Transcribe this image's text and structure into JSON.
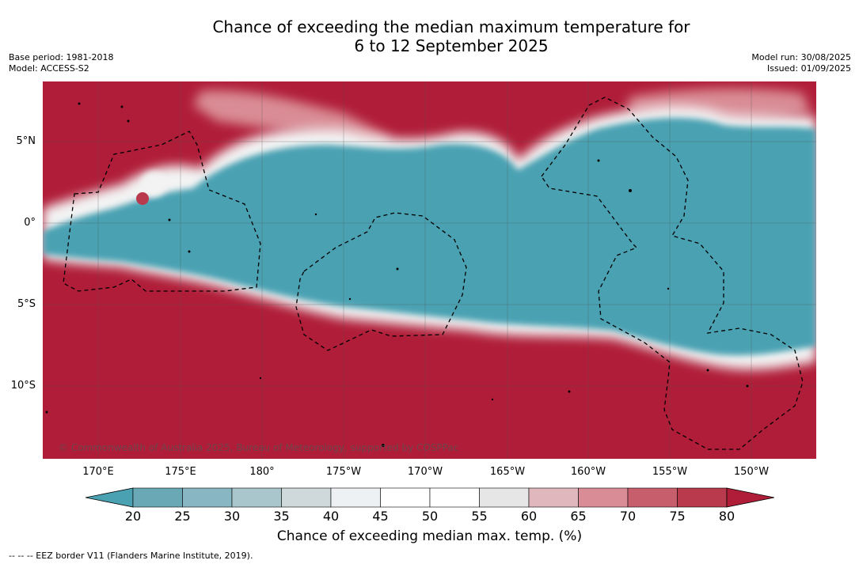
{
  "title_line1": "Chance of exceeding the median maximum temperature for",
  "title_line2": "6 to 12 September 2025",
  "base_period": "Base period: 1981-2018",
  "model": "Model: ACCESS-S2",
  "model_run": "Model run: 30/08/2025",
  "issued": "Issued: 01/09/2025",
  "lat_labels": [
    "5°N",
    "0°",
    "5°S",
    "10°S"
  ],
  "lon_labels": [
    "170°E",
    "175°E",
    "180°",
    "175°W",
    "170°W",
    "165°W",
    "160°W",
    "155°W",
    "150°W"
  ],
  "copyright": "© Commonwealth of Australia 2025, Bureau of Meteorology, supported by COSPPac",
  "colorbar": {
    "ticks": [
      "20",
      "25",
      "30",
      "35",
      "40",
      "45",
      "50",
      "55",
      "60",
      "65",
      "70",
      "75",
      "80"
    ],
    "colors": [
      "#4aa1b2",
      "#6aa8b6",
      "#88b7c3",
      "#a9c6cc",
      "#cfd9dc",
      "#edf1f3",
      "#ffffff",
      "#ffffff",
      "#e6e6e6",
      "#e0b7bc",
      "#d98c95",
      "#c75e6c",
      "#b83a4c",
      "#b01d38"
    ],
    "title": "Chance of exceeding median max. temp. (%)"
  },
  "legend_text": "-- -- -- EEZ border V11 (Flanders Marine Institute, 2019)."
}
